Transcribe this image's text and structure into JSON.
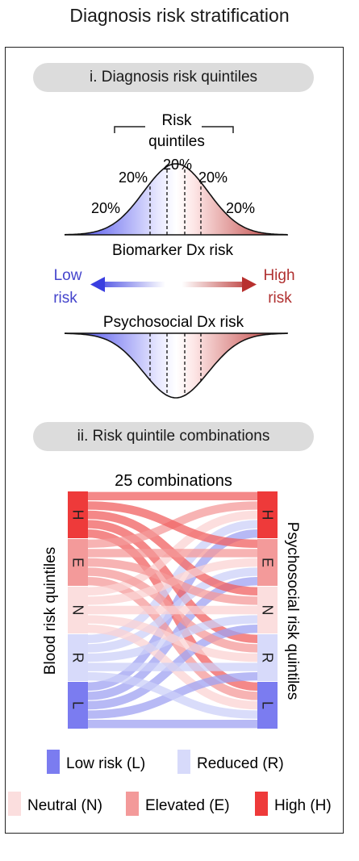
{
  "title": "Diagnosis risk stratification",
  "section1": {
    "pill": "i. Diagnosis risk quintiles",
    "bracket_line1": "Risk",
    "bracket_line2": "quintiles",
    "pct_labels": [
      "20%",
      "20%",
      "20%",
      "20%",
      "20%"
    ],
    "biomarker_label": "Biomarker Dx risk",
    "low_line1": "Low",
    "low_line2": "risk",
    "high_line1": "High",
    "high_line2": "risk",
    "psychosocial_label": "Psychosocial Dx risk"
  },
  "section2": {
    "pill": "ii. Risk quintile combinations",
    "combinations_label": "25 combinations",
    "left_axis_label": "Blood risk quintiles",
    "right_axis_label": "Psychosocial risk quintiles",
    "quintiles": [
      "H",
      "E",
      "N",
      "R",
      "L"
    ]
  },
  "legend": {
    "low": "Low risk (L)",
    "reduced": "Reduced (R)",
    "neutral": "Neutral (N)",
    "elevated": "Elevated (E)",
    "high": "High (H)"
  },
  "colors": {
    "low": "#7b7cf0",
    "reduced": "#d7dafa",
    "neutral": "#fbdede",
    "elevated": "#f39a9a",
    "high": "#ee3a3a",
    "arrow_low": "#3a3ee0",
    "arrow_high": "#b8302e",
    "low_text": "#4444cc",
    "high_text": "#b03030"
  }
}
